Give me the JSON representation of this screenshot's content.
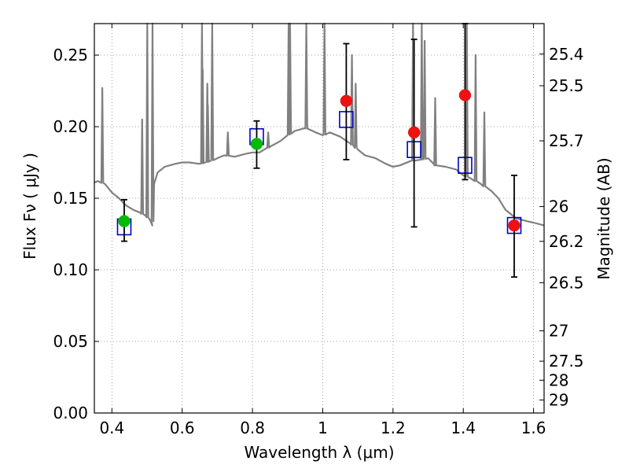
{
  "chart_data": {
    "type": "scatter",
    "xlabel": "Wavelength  λ (μm)",
    "ylabel": "Flux  Fν  ( μJy )",
    "ylabel_right": "Magnitude (AB)",
    "xlim": [
      0.35,
      1.63
    ],
    "ylim": [
      0.0,
      0.272
    ],
    "grid": true,
    "x_ticks": [
      {
        "value": 0.4,
        "label": "0.4"
      },
      {
        "value": 0.6,
        "label": "0.6"
      },
      {
        "value": 0.8,
        "label": "0.8"
      },
      {
        "value": 1.0,
        "label": "1"
      },
      {
        "value": 1.2,
        "label": "1.2"
      },
      {
        "value": 1.4,
        "label": "1.4"
      },
      {
        "value": 1.6,
        "label": "1.6"
      }
    ],
    "y_ticks": [
      {
        "value": 0.0,
        "label": "0.00"
      },
      {
        "value": 0.05,
        "label": "0.05"
      },
      {
        "value": 0.1,
        "label": "0.10"
      },
      {
        "value": 0.15,
        "label": "0.15"
      },
      {
        "value": 0.2,
        "label": "0.20"
      },
      {
        "value": 0.25,
        "label": "0.25"
      }
    ],
    "right_ticks": [
      {
        "label": "25.4",
        "flux": 0.2507
      },
      {
        "label": "25.5",
        "flux": 0.2286
      },
      {
        "label": "25.7",
        "flux": 0.1901
      },
      {
        "label": "26",
        "flux": 0.1442
      },
      {
        "label": "26.2",
        "flux": 0.1199
      },
      {
        "label": "26.5",
        "flux": 0.091
      },
      {
        "label": "27",
        "flux": 0.0574
      },
      {
        "label": "27.5",
        "flux": 0.0362
      },
      {
        "label": "28",
        "flux": 0.0229
      },
      {
        "label": "29",
        "flux": 0.0091
      }
    ],
    "series": [
      {
        "role": "model",
        "color": "#808080",
        "continuum": [
          [
            0.35,
            0.161
          ],
          [
            0.36,
            0.162
          ],
          [
            0.38,
            0.16
          ],
          [
            0.4,
            0.154
          ],
          [
            0.42,
            0.15
          ],
          [
            0.44,
            0.145
          ],
          [
            0.46,
            0.142
          ],
          [
            0.48,
            0.14
          ],
          [
            0.5,
            0.137
          ],
          [
            0.51,
            0.134
          ],
          [
            0.515,
            0.131
          ],
          [
            0.52,
            0.16
          ],
          [
            0.53,
            0.168
          ],
          [
            0.55,
            0.172
          ],
          [
            0.58,
            0.174
          ],
          [
            0.6,
            0.175
          ],
          [
            0.62,
            0.175
          ],
          [
            0.65,
            0.174
          ],
          [
            0.68,
            0.176
          ],
          [
            0.7,
            0.178
          ],
          [
            0.72,
            0.18
          ],
          [
            0.75,
            0.179
          ],
          [
            0.78,
            0.181
          ],
          [
            0.8,
            0.182
          ],
          [
            0.82,
            0.182
          ],
          [
            0.85,
            0.186
          ],
          [
            0.88,
            0.19
          ],
          [
            0.9,
            0.194
          ],
          [
            0.92,
            0.197
          ],
          [
            0.95,
            0.199
          ],
          [
            0.98,
            0.196
          ],
          [
            1.0,
            0.194
          ],
          [
            1.02,
            0.196
          ],
          [
            1.05,
            0.193
          ],
          [
            1.08,
            0.188
          ],
          [
            1.1,
            0.184
          ],
          [
            1.12,
            0.18
          ],
          [
            1.15,
            0.178
          ],
          [
            1.18,
            0.174
          ],
          [
            1.2,
            0.172
          ],
          [
            1.22,
            0.173
          ],
          [
            1.25,
            0.176
          ],
          [
            1.28,
            0.177
          ],
          [
            1.3,
            0.178
          ],
          [
            1.32,
            0.173
          ],
          [
            1.35,
            0.172
          ],
          [
            1.38,
            0.17
          ],
          [
            1.4,
            0.166
          ],
          [
            1.42,
            0.164
          ],
          [
            1.45,
            0.16
          ],
          [
            1.48,
            0.155
          ],
          [
            1.5,
            0.15
          ],
          [
            1.52,
            0.142
          ],
          [
            1.55,
            0.136
          ],
          [
            1.58,
            0.134
          ],
          [
            1.6,
            0.133
          ],
          [
            1.63,
            0.131
          ]
        ],
        "emission_lines": [
          [
            0.3727,
            0.227
          ],
          [
            0.4861,
            0.205
          ],
          [
            0.5007,
            0.272
          ],
          [
            0.5155,
            0.272
          ],
          [
            0.6563,
            0.272
          ],
          [
            0.6583,
            0.24
          ],
          [
            0.6716,
            0.23
          ],
          [
            0.6731,
            0.215
          ],
          [
            0.6854,
            0.272
          ],
          [
            0.73,
            0.196
          ],
          [
            0.8448,
            0.196
          ],
          [
            0.903,
            0.272
          ],
          [
            0.9069,
            0.272
          ],
          [
            0.9532,
            0.272
          ],
          [
            1.0049,
            0.272
          ],
          [
            1.083,
            0.25
          ],
          [
            1.0938,
            0.23
          ],
          [
            1.257,
            0.272
          ],
          [
            1.2818,
            0.272
          ],
          [
            1.29,
            0.26
          ],
          [
            1.32,
            0.22
          ],
          [
            1.41,
            0.272
          ],
          [
            1.435,
            0.25
          ],
          [
            1.46,
            0.21
          ]
        ]
      },
      {
        "role": "model-photometry",
        "marker": "open-square",
        "color": "#0000cc",
        "points": [
          {
            "x": 0.435,
            "y": 0.13
          },
          {
            "x": 0.812,
            "y": 0.193
          },
          {
            "x": 1.067,
            "y": 0.205
          },
          {
            "x": 1.26,
            "y": 0.184
          },
          {
            "x": 1.405,
            "y": 0.173
          },
          {
            "x": 1.545,
            "y": 0.131
          }
        ]
      },
      {
        "role": "observed-optical",
        "marker": "filled-circle",
        "color": "#00bb00",
        "points": [
          {
            "x": 0.435,
            "y": 0.134,
            "ylo": 0.12,
            "yhi": 0.149
          },
          {
            "x": 0.812,
            "y": 0.188,
            "ylo": 0.171,
            "yhi": 0.204
          }
        ]
      },
      {
        "role": "observed-nir",
        "marker": "filled-circle",
        "color": "#ee1111",
        "points": [
          {
            "x": 1.067,
            "y": 0.218,
            "ylo": 0.177,
            "yhi": 0.258
          },
          {
            "x": 1.26,
            "y": 0.196,
            "ylo": 0.13,
            "yhi": 0.261
          },
          {
            "x": 1.405,
            "y": 0.222,
            "ylo": 0.163,
            "yhi": 0.272
          },
          {
            "x": 1.545,
            "y": 0.131,
            "ylo": 0.095,
            "yhi": 0.166
          }
        ]
      }
    ]
  }
}
